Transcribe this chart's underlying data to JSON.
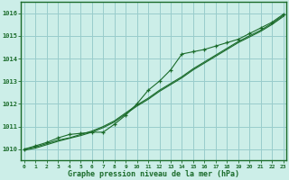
{
  "title": "Graphe pression niveau de la mer (hPa)",
  "background_color": "#cceee8",
  "grid_color": "#99cccc",
  "line_color": "#1a6b2a",
  "x_ticks": [
    0,
    1,
    2,
    3,
    4,
    5,
    6,
    7,
    8,
    9,
    10,
    11,
    12,
    13,
    14,
    15,
    16,
    17,
    18,
    19,
    20,
    21,
    22,
    23
  ],
  "y_ticks": [
    1010,
    1011,
    1012,
    1013,
    1014,
    1015,
    1016
  ],
  "ylim": [
    1009.5,
    1016.5
  ],
  "xlim": [
    -0.3,
    23.3
  ],
  "line1_y": [
    1010.0,
    1010.15,
    1010.3,
    1010.5,
    1010.65,
    1010.7,
    1010.75,
    1010.75,
    1011.1,
    1011.5,
    1012.0,
    1012.6,
    1013.0,
    1013.5,
    1014.2,
    1014.3,
    1014.4,
    1014.55,
    1014.7,
    1014.85,
    1015.1,
    1015.35,
    1015.6,
    1015.95
  ],
  "line2_y": [
    1010.0,
    1010.1,
    1010.25,
    1010.4,
    1010.5,
    1010.65,
    1010.8,
    1011.0,
    1011.25,
    1011.6,
    1011.95,
    1012.25,
    1012.6,
    1012.9,
    1013.2,
    1013.55,
    1013.85,
    1014.15,
    1014.45,
    1014.75,
    1015.0,
    1015.25,
    1015.55,
    1015.9
  ],
  "line3_y": [
    1009.95,
    1010.05,
    1010.2,
    1010.35,
    1010.48,
    1010.6,
    1010.75,
    1010.95,
    1011.2,
    1011.55,
    1011.9,
    1012.2,
    1012.55,
    1012.85,
    1013.15,
    1013.5,
    1013.8,
    1014.1,
    1014.4,
    1014.7,
    1014.95,
    1015.2,
    1015.5,
    1015.85
  ]
}
